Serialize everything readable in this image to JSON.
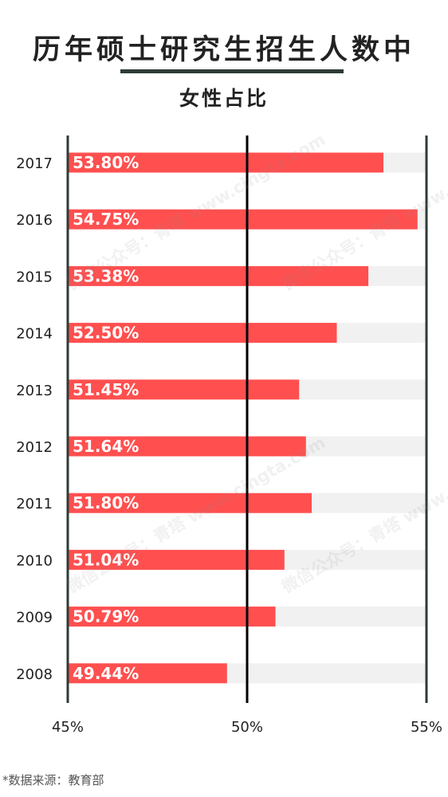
{
  "title": "历年硕士研究生招生人数中",
  "subtitle": "女性占比",
  "footnote": "*数据来源：教育部",
  "watermark": "微信公众号：青塔 www.cingta.com",
  "colors": {
    "bar": "#ff4f4f",
    "track": "#f1f1f1",
    "axis": "#000000",
    "border": "#2e3b36",
    "label": "#ffffff"
  },
  "chart_data": {
    "type": "bar",
    "orientation": "horizontal",
    "categories": [
      "2017",
      "2016",
      "2015",
      "2014",
      "2013",
      "2012",
      "2011",
      "2010",
      "2009",
      "2008"
    ],
    "values": [
      53.8,
      54.75,
      53.38,
      52.5,
      51.45,
      51.64,
      51.8,
      51.04,
      50.79,
      49.44
    ],
    "data_labels": [
      "53.80%",
      "54.75%",
      "53.38%",
      "52.50%",
      "51.45%",
      "51.64%",
      "51.80%",
      "51.04%",
      "50.79%",
      "49.44%"
    ],
    "xlim": [
      45,
      55
    ],
    "xticks": [
      45,
      50,
      55
    ],
    "xtick_labels": [
      "45%",
      "50%",
      "55%"
    ],
    "reference_line": 50,
    "grid": false
  }
}
